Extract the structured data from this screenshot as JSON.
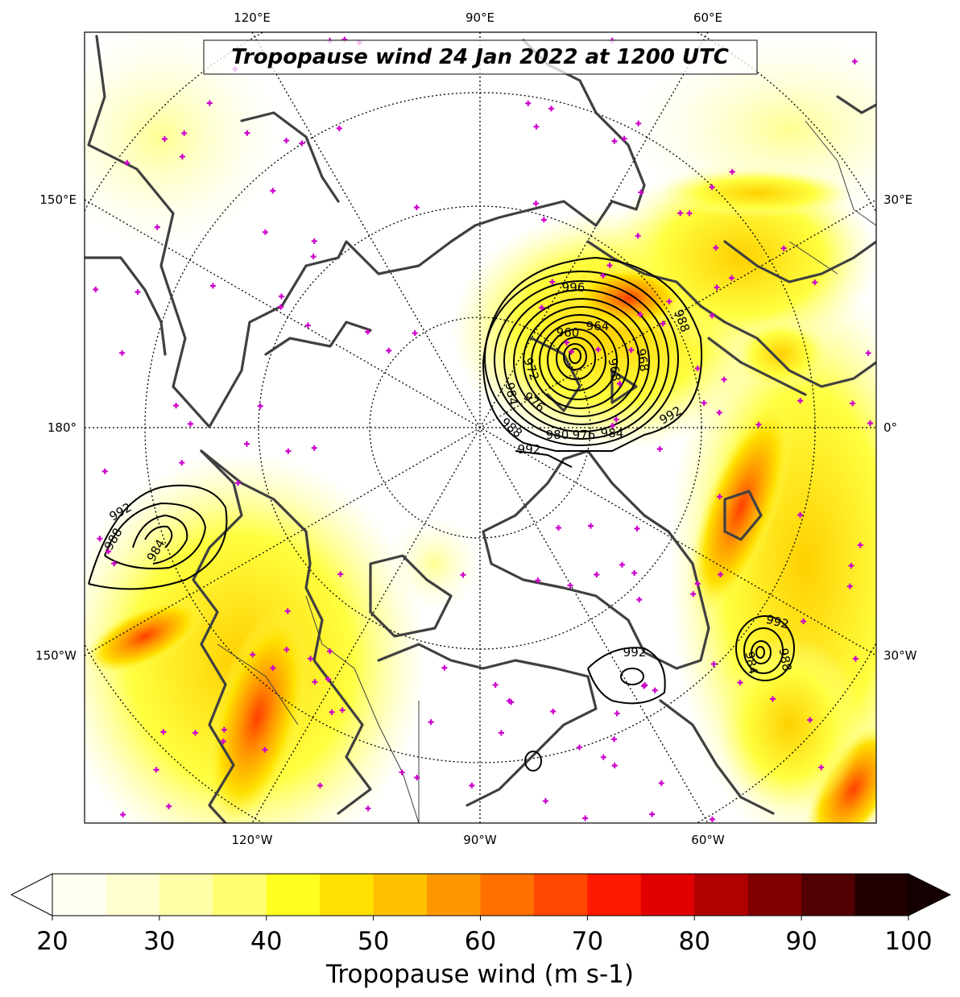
{
  "title": "Tropopause wind 24 Jan 2022 at 1200 UTC",
  "lon_labels": {
    "top": [
      "120°E",
      "90°E",
      "60°E"
    ],
    "bottom": [
      "120°W",
      "90°W",
      "60°W"
    ],
    "left": [
      "150°E",
      "180°",
      "150°W"
    ],
    "right": [
      "30°E",
      "0°",
      "30°W"
    ]
  },
  "contour_labels": {
    "main_low": [
      "996",
      "960",
      "964",
      "968",
      "972",
      "976",
      "980",
      "984",
      "988",
      "992",
      "968",
      "988",
      "976",
      "984",
      "992"
    ],
    "pacific_low": [
      "992",
      "988",
      "984"
    ],
    "atlantic_low": [
      "992",
      "988",
      "984"
    ],
    "labrador_low": [
      "992"
    ]
  },
  "colorbar": {
    "label": "Tropopause wind (m s-1)",
    "ticks": [
      "20",
      "30",
      "40",
      "50",
      "60",
      "70",
      "80",
      "90",
      "100"
    ],
    "min": 20,
    "max": 100,
    "colors": [
      "#fffff2",
      "#ffffd0",
      "#ffffa8",
      "#ffff70",
      "#ffff20",
      "#ffe000",
      "#ffc000",
      "#ff9800",
      "#ff7000",
      "#ff4800",
      "#ff1800",
      "#e00000",
      "#b00000",
      "#800000",
      "#500000",
      "#200000"
    ]
  },
  "colors": {
    "coast": "#404040",
    "contour": "#000000",
    "marker": "#cc00cc"
  }
}
